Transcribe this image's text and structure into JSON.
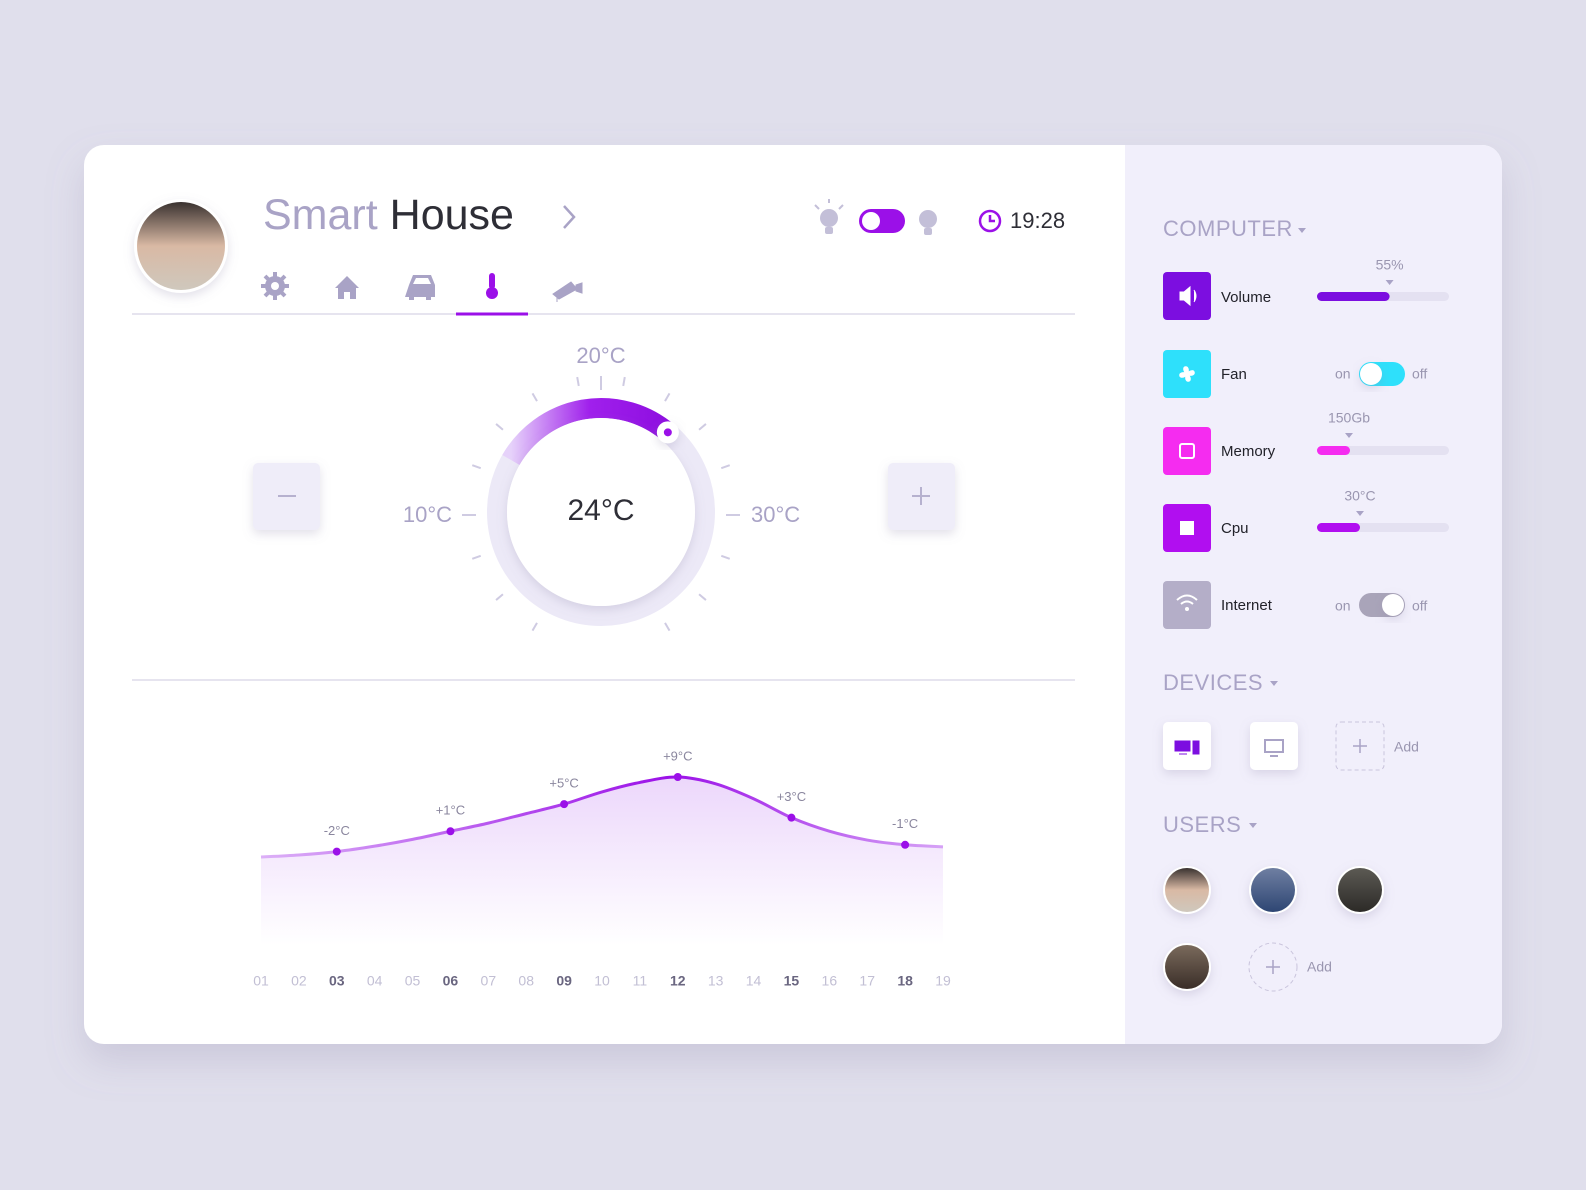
{
  "header": {
    "title_light": "Smart",
    "title_dark": "House",
    "time": "19:28"
  },
  "thermostat": {
    "current": "24°C",
    "top_label": "20°C",
    "left_label": "10°C",
    "right_label": "30°C"
  },
  "chart": {
    "type": "area",
    "categories": [
      "01",
      "02",
      "03",
      "04",
      "05",
      "06",
      "07",
      "08",
      "09",
      "10",
      "11",
      "12",
      "13",
      "14",
      "15",
      "16",
      "17",
      "18",
      "19"
    ],
    "values": [
      -2.8,
      -2.5,
      -2,
      -1.2,
      -0.2,
      1,
      2.2,
      3.6,
      5,
      6.8,
      8.2,
      9,
      8,
      5.8,
      3,
      1,
      -0.3,
      -1,
      -1.3
    ],
    "value_labels": [
      null,
      null,
      "-2°C",
      null,
      null,
      "+1°C",
      null,
      null,
      "+5°C",
      null,
      null,
      "+9°C",
      null,
      null,
      "+3°C",
      null,
      null,
      "-1°C",
      null
    ],
    "color": "#9b10e8"
  },
  "sidebar": {
    "computer": {
      "title": "COMPUTER",
      "items": [
        {
          "name": "Volume",
          "value": 55,
          "value_label": "55%"
        },
        {
          "name": "Fan",
          "on": "on",
          "off": "off"
        },
        {
          "name": "Memory",
          "label": "150Gb"
        },
        {
          "name": "Cpu",
          "label": "30°C"
        },
        {
          "name": "Internet",
          "on": "on",
          "off": "off"
        }
      ]
    },
    "devices": {
      "title": "DEVICES",
      "add": "Add"
    },
    "users": {
      "title": "USERS",
      "add": "Add"
    }
  }
}
